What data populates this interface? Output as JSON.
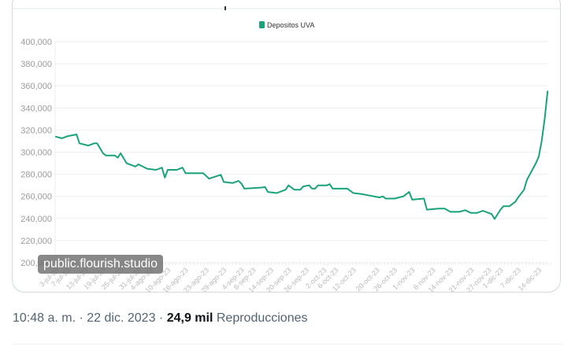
{
  "chart_data": {
    "type": "line",
    "title": "",
    "legend": [
      {
        "label": "Depositos UVA",
        "color": "#1aa37a"
      }
    ],
    "legend_placement": "top-center",
    "xlabel": "",
    "ylabel": "",
    "ylim": [
      200000,
      400000
    ],
    "y_ticks": [
      "200,000",
      "220,000",
      "240,000",
      "260,000",
      "280,000",
      "300,000",
      "320,000",
      "340,000",
      "360,000",
      "380,000",
      "400,000"
    ],
    "x_unit": "days since 3-jul-23",
    "x_ticks": [
      {
        "day": 0,
        "label": "3-jul-23"
      },
      {
        "day": 4,
        "label": "7-jul-23"
      },
      {
        "day": 10,
        "label": "13-jul-23"
      },
      {
        "day": 16,
        "label": "19-jul-23"
      },
      {
        "day": 22,
        "label": "25-jul-23"
      },
      {
        "day": 28,
        "label": "31-jul-23"
      },
      {
        "day": 32,
        "label": "4-ago-23"
      },
      {
        "day": 38,
        "label": "10-ago-23"
      },
      {
        "day": 44,
        "label": "16-ago-23"
      },
      {
        "day": 51,
        "label": "23-ago-23"
      },
      {
        "day": 57,
        "label": "29-ago-23"
      },
      {
        "day": 63,
        "label": "4-sep-23"
      },
      {
        "day": 67,
        "label": "8-sep-23"
      },
      {
        "day": 73,
        "label": "14-sep-23"
      },
      {
        "day": 79,
        "label": "20-sep-23"
      },
      {
        "day": 85,
        "label": "26-sep-23"
      },
      {
        "day": 91,
        "label": "2-oct-23"
      },
      {
        "day": 95,
        "label": "6-oct-23"
      },
      {
        "day": 101,
        "label": "12-oct-23"
      },
      {
        "day": 109,
        "label": "20-oct-23"
      },
      {
        "day": 115,
        "label": "26-oct-23"
      },
      {
        "day": 121,
        "label": "1-nov-23"
      },
      {
        "day": 128,
        "label": "8-nov-23"
      },
      {
        "day": 134,
        "label": "14-nov-23"
      },
      {
        "day": 141,
        "label": "21-nov-23"
      },
      {
        "day": 147,
        "label": "27-nov-23"
      },
      {
        "day": 151,
        "label": "1-dic-23"
      },
      {
        "day": 157,
        "label": "7-dic-23"
      },
      {
        "day": 164,
        "label": "14-dic-23"
      }
    ],
    "xlim": [
      0,
      168
    ],
    "grid": true,
    "series": [
      {
        "name": "Depositos UVA",
        "color": "#1aa37a",
        "points": [
          [
            0,
            314000
          ],
          [
            2,
            312500
          ],
          [
            4,
            314500
          ],
          [
            7,
            316000
          ],
          [
            8,
            308000
          ],
          [
            11,
            306000
          ],
          [
            13,
            308000
          ],
          [
            14,
            308000
          ],
          [
            16,
            299000
          ],
          [
            17,
            297000
          ],
          [
            20,
            297000
          ],
          [
            21,
            295000
          ],
          [
            22,
            299000
          ],
          [
            24,
            290000
          ],
          [
            26,
            288000
          ],
          [
            27,
            287000
          ],
          [
            28,
            289000
          ],
          [
            31,
            285000
          ],
          [
            34,
            284000
          ],
          [
            36,
            286000
          ],
          [
            37,
            277000
          ],
          [
            38,
            284000
          ],
          [
            41,
            284000
          ],
          [
            43,
            286000
          ],
          [
            44,
            281000
          ],
          [
            50,
            281000
          ],
          [
            52,
            276000
          ],
          [
            56,
            279500
          ],
          [
            57,
            273000
          ],
          [
            60,
            272000
          ],
          [
            62,
            274000
          ],
          [
            63,
            271500
          ],
          [
            64,
            267000
          ],
          [
            70,
            268000
          ],
          [
            71,
            268500
          ],
          [
            72,
            264000
          ],
          [
            75,
            263000
          ],
          [
            78,
            266000
          ],
          [
            79,
            270000
          ],
          [
            81,
            266000
          ],
          [
            83,
            266000
          ],
          [
            84,
            269000
          ],
          [
            86,
            270000
          ],
          [
            87,
            267000
          ],
          [
            88,
            267000
          ],
          [
            89,
            270000
          ],
          [
            92,
            270000
          ],
          [
            93,
            271000
          ],
          [
            94,
            267000
          ],
          [
            99,
            267000
          ],
          [
            101,
            263000
          ],
          [
            104,
            262000
          ],
          [
            106,
            261000
          ],
          [
            110,
            259000
          ],
          [
            111,
            260000
          ],
          [
            112,
            258000
          ],
          [
            115,
            258000
          ],
          [
            118,
            260000
          ],
          [
            120,
            264000
          ],
          [
            121,
            257000
          ],
          [
            125,
            258000
          ],
          [
            126,
            248000
          ],
          [
            130,
            249000
          ],
          [
            132,
            249000
          ],
          [
            134,
            246000
          ],
          [
            137,
            246000
          ],
          [
            139,
            247500
          ],
          [
            141,
            245000
          ],
          [
            143,
            245000
          ],
          [
            145,
            247000
          ],
          [
            147,
            245000
          ],
          [
            148,
            244000
          ],
          [
            149,
            239500
          ],
          [
            151,
            248000
          ],
          [
            152,
            251000
          ],
          [
            154,
            251000
          ],
          [
            156,
            255000
          ],
          [
            157,
            259000
          ],
          [
            159,
            266000
          ],
          [
            160,
            275000
          ],
          [
            161,
            280000
          ],
          [
            163,
            290000
          ],
          [
            164,
            296000
          ],
          [
            165,
            310000
          ],
          [
            166,
            330000
          ],
          [
            167,
            355000
          ]
        ]
      }
    ]
  },
  "watermark": "public.flourish.studio",
  "footer": {
    "time": "10:48 a. m.",
    "separator": "·",
    "date": "22 dic. 2023",
    "views_count": "24,9 mil",
    "views_label": "Reproducciones"
  }
}
